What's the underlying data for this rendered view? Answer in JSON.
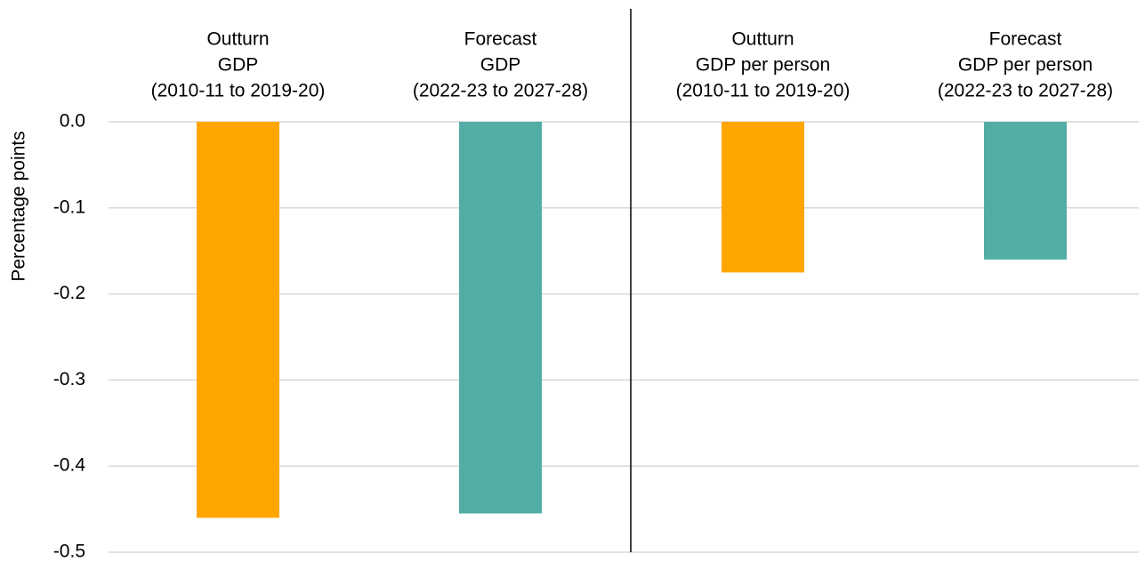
{
  "chart_data": {
    "type": "bar",
    "y_label": "Percentage points",
    "categories": [
      [
        "Outturn",
        "GDP",
        "(2010-11 to 2019-20)"
      ],
      [
        "Forecast",
        "GDP",
        "(2022-23 to 2027-28)"
      ],
      [
        "Outturn",
        "GDP per person",
        "(2010-11 to 2019-20)"
      ],
      [
        "Forecast",
        "GDP per person",
        "(2022-23 to 2027-28)"
      ]
    ],
    "values": [
      -0.46,
      -0.455,
      -0.175,
      -0.16
    ],
    "colors": [
      "#ffa600",
      "#52aea5",
      "#ffa600",
      "#52aea5"
    ],
    "ylim": [
      -0.5,
      0
    ],
    "yticks": [
      {
        "value": 0,
        "label": "0.0"
      },
      -0.1,
      -0.2,
      -0.3,
      -0.4,
      -0.5
    ],
    "grid": true
  }
}
